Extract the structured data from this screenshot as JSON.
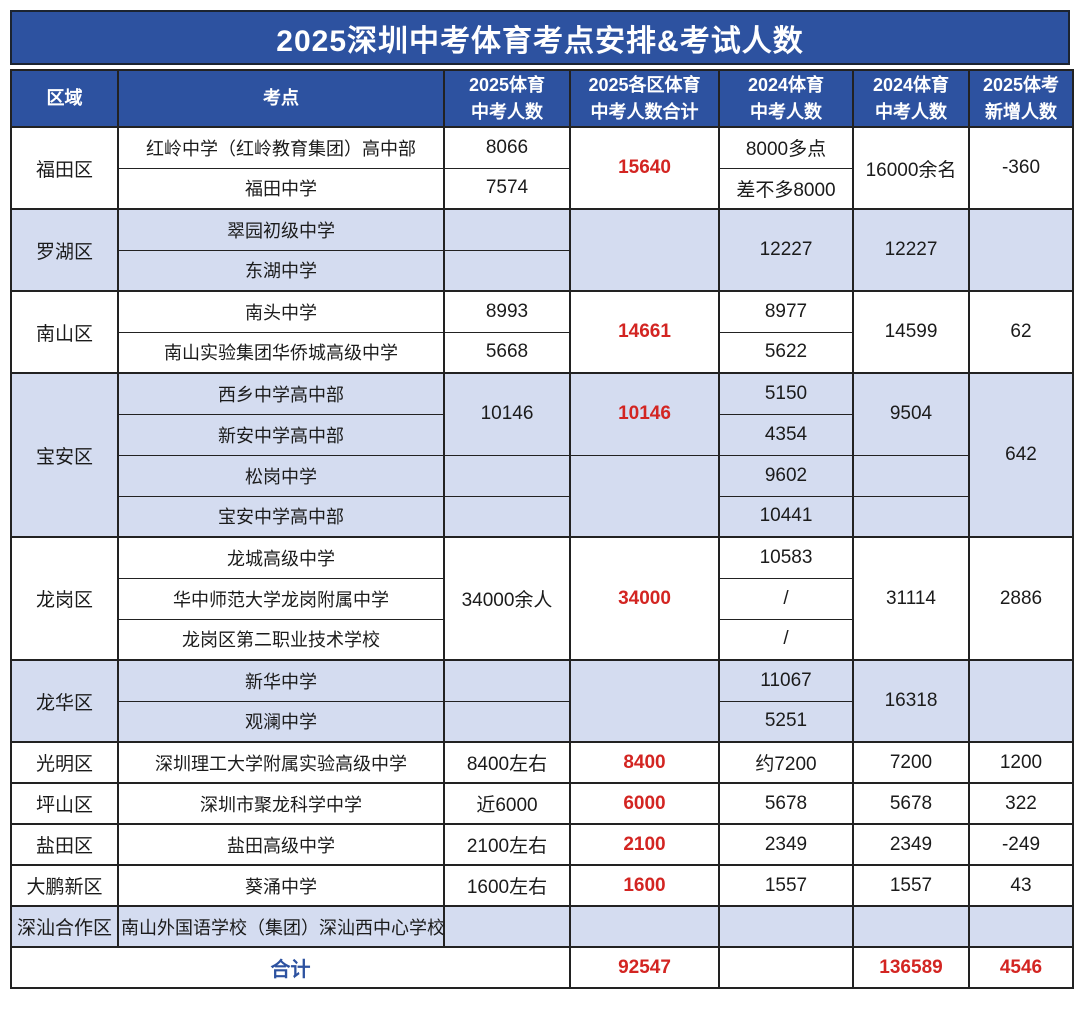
{
  "title": "2025深圳中考体育考点安排&考试人数",
  "colors": {
    "header_blue": "#2d52a0",
    "row_light_blue": "#d4dcf0",
    "highlight_red": "#d32522",
    "total_label_blue": "#2d52a0",
    "border": "#222222"
  },
  "table": {
    "columns": [
      {
        "line1": "区域",
        "line2": ""
      },
      {
        "line1": "考点",
        "line2": ""
      },
      {
        "line1": "2025体育",
        "line2": "中考人数"
      },
      {
        "line1": "2025各区体育",
        "line2": "中考人数合计"
      },
      {
        "line1": "2024体育",
        "line2": "中考人数"
      },
      {
        "line1": "2024体育",
        "line2": "中考人数"
      },
      {
        "line1": "2025体考",
        "line2": "新增人数"
      }
    ],
    "rows": [
      {
        "g": true,
        "shade": "w",
        "cells": [
          {
            "t": "福田区",
            "rs": 2,
            "nm": "cell-district"
          },
          {
            "t": "红岭中学（红岭教育集团）高中部",
            "nm": "cell-school"
          },
          {
            "t": "8066",
            "nm": "cell-value"
          },
          {
            "t": "15640",
            "rs": 2,
            "cls": "red",
            "nm": "cell-value"
          },
          {
            "t": "8000多点",
            "nm": "cell-value"
          },
          {
            "t": "16000余名",
            "rs": 2,
            "nm": "cell-value"
          },
          {
            "t": "-360",
            "rs": 2,
            "nm": "cell-value"
          }
        ]
      },
      {
        "shade": "w",
        "cells": [
          {
            "t": "福田中学",
            "nm": "cell-school"
          },
          {
            "t": "7574",
            "nm": "cell-value"
          },
          {
            "t": "差不多8000",
            "nm": "cell-value"
          }
        ]
      },
      {
        "g": true,
        "shade": "b",
        "cells": [
          {
            "t": "罗湖区",
            "rs": 2,
            "nm": "cell-district"
          },
          {
            "t": "翠园初级中学",
            "nm": "cell-school"
          },
          {
            "t": "",
            "nm": "cell-value"
          },
          {
            "t": "",
            "rs": 2,
            "nm": "cell-value"
          },
          {
            "t": "12227",
            "rs": 2,
            "nm": "cell-value"
          },
          {
            "t": "12227",
            "rs": 2,
            "nm": "cell-value"
          },
          {
            "t": "",
            "rs": 2,
            "nm": "cell-value"
          }
        ]
      },
      {
        "shade": "b",
        "cells": [
          {
            "t": "东湖中学",
            "nm": "cell-school"
          },
          {
            "t": "",
            "nm": "cell-value"
          }
        ]
      },
      {
        "g": true,
        "shade": "w",
        "cells": [
          {
            "t": "南山区",
            "rs": 2,
            "nm": "cell-district"
          },
          {
            "t": "南头中学",
            "nm": "cell-school"
          },
          {
            "t": "8993",
            "nm": "cell-value"
          },
          {
            "t": "14661",
            "rs": 2,
            "cls": "red",
            "nm": "cell-value"
          },
          {
            "t": "8977",
            "nm": "cell-value"
          },
          {
            "t": "14599",
            "rs": 2,
            "nm": "cell-value"
          },
          {
            "t": "62",
            "rs": 2,
            "nm": "cell-value"
          }
        ]
      },
      {
        "shade": "w",
        "cells": [
          {
            "t": "南山实验集团华侨城高级中学",
            "nm": "cell-school"
          },
          {
            "t": "5668",
            "nm": "cell-value"
          },
          {
            "t": "5622",
            "nm": "cell-value"
          }
        ]
      },
      {
        "g": true,
        "shade": "b",
        "cells": [
          {
            "t": "宝安区",
            "rs": 4,
            "nm": "cell-district"
          },
          {
            "t": "西乡中学高中部",
            "nm": "cell-school"
          },
          {
            "t": "10146",
            "rs": 2,
            "nm": "cell-value"
          },
          {
            "t": "10146",
            "rs": 2,
            "cls": "red",
            "nm": "cell-value"
          },
          {
            "t": "5150",
            "nm": "cell-value"
          },
          {
            "t": "9504",
            "rs": 2,
            "nm": "cell-value"
          },
          {
            "t": "642",
            "rs": 4,
            "nm": "cell-value"
          }
        ]
      },
      {
        "shade": "b",
        "cells": [
          {
            "t": "新安中学高中部",
            "nm": "cell-school"
          },
          {
            "t": "4354",
            "nm": "cell-value"
          }
        ]
      },
      {
        "shade": "b",
        "cells": [
          {
            "t": "松岗中学",
            "nm": "cell-school"
          },
          {
            "t": "",
            "nm": "cell-value"
          },
          {
            "t": "",
            "rs": 2,
            "nm": "cell-value"
          },
          {
            "t": "9602",
            "nm": "cell-value"
          },
          {
            "t": "",
            "nm": "cell-value"
          }
        ]
      },
      {
        "shade": "b",
        "cells": [
          {
            "t": "宝安中学高中部",
            "nm": "cell-school"
          },
          {
            "t": "",
            "nm": "cell-value"
          },
          {
            "t": "10441",
            "nm": "cell-value"
          },
          {
            "t": "",
            "nm": "cell-value"
          }
        ]
      },
      {
        "g": true,
        "shade": "w",
        "cells": [
          {
            "t": "龙岗区",
            "rs": 3,
            "nm": "cell-district"
          },
          {
            "t": "龙城高级中学",
            "nm": "cell-school"
          },
          {
            "t": "34000余人",
            "rs": 3,
            "nm": "cell-value"
          },
          {
            "t": "34000",
            "rs": 3,
            "cls": "red",
            "nm": "cell-value"
          },
          {
            "t": "10583",
            "nm": "cell-value"
          },
          {
            "t": "31114",
            "rs": 3,
            "nm": "cell-value"
          },
          {
            "t": "2886",
            "rs": 3,
            "nm": "cell-value"
          }
        ]
      },
      {
        "shade": "w",
        "cells": [
          {
            "t": "华中师范大学龙岗附属中学",
            "nm": "cell-school"
          },
          {
            "t": "/",
            "nm": "cell-value"
          }
        ]
      },
      {
        "shade": "w",
        "cells": [
          {
            "t": "龙岗区第二职业技术学校",
            "nm": "cell-school"
          },
          {
            "t": "/",
            "nm": "cell-value"
          }
        ]
      },
      {
        "g": true,
        "shade": "b",
        "cells": [
          {
            "t": "龙华区",
            "rs": 2,
            "nm": "cell-district"
          },
          {
            "t": "新华中学",
            "nm": "cell-school"
          },
          {
            "t": "",
            "nm": "cell-value"
          },
          {
            "t": "",
            "rs": 2,
            "nm": "cell-value"
          },
          {
            "t": "11067",
            "nm": "cell-value"
          },
          {
            "t": "16318",
            "rs": 2,
            "nm": "cell-value"
          },
          {
            "t": "",
            "rs": 2,
            "nm": "cell-value"
          }
        ]
      },
      {
        "shade": "b",
        "cells": [
          {
            "t": "观澜中学",
            "nm": "cell-school"
          },
          {
            "t": "",
            "nm": "cell-value"
          },
          {
            "t": "5251",
            "nm": "cell-value"
          }
        ]
      },
      {
        "g": true,
        "shade": "w",
        "cells": [
          {
            "t": "光明区",
            "nm": "cell-district"
          },
          {
            "t": "深圳理工大学附属实验高级中学",
            "nm": "cell-school"
          },
          {
            "t": "8400左右",
            "nm": "cell-value"
          },
          {
            "t": "8400",
            "cls": "red",
            "nm": "cell-value"
          },
          {
            "t": "约7200",
            "nm": "cell-value"
          },
          {
            "t": "7200",
            "nm": "cell-value"
          },
          {
            "t": "1200",
            "nm": "cell-value"
          }
        ]
      },
      {
        "g": true,
        "shade": "w",
        "cells": [
          {
            "t": "坪山区",
            "nm": "cell-district"
          },
          {
            "t": "深圳市聚龙科学中学",
            "nm": "cell-school"
          },
          {
            "t": "近6000",
            "nm": "cell-value"
          },
          {
            "t": "6000",
            "cls": "red",
            "nm": "cell-value"
          },
          {
            "t": "5678",
            "nm": "cell-value"
          },
          {
            "t": "5678",
            "nm": "cell-value"
          },
          {
            "t": "322",
            "nm": "cell-value"
          }
        ]
      },
      {
        "g": true,
        "shade": "w",
        "cells": [
          {
            "t": "盐田区",
            "nm": "cell-district"
          },
          {
            "t": "盐田高级中学",
            "nm": "cell-school"
          },
          {
            "t": "2100左右",
            "nm": "cell-value"
          },
          {
            "t": "2100",
            "cls": "red",
            "nm": "cell-value"
          },
          {
            "t": "2349",
            "nm": "cell-value"
          },
          {
            "t": "2349",
            "nm": "cell-value"
          },
          {
            "t": "-249",
            "nm": "cell-value"
          }
        ]
      },
      {
        "g": true,
        "shade": "w",
        "cells": [
          {
            "t": "大鹏新区",
            "nm": "cell-district"
          },
          {
            "t": "葵涌中学",
            "nm": "cell-school"
          },
          {
            "t": "1600左右",
            "nm": "cell-value"
          },
          {
            "t": "1600",
            "cls": "red",
            "nm": "cell-value"
          },
          {
            "t": "1557",
            "nm": "cell-value"
          },
          {
            "t": "1557",
            "nm": "cell-value"
          },
          {
            "t": "43",
            "nm": "cell-value"
          }
        ]
      },
      {
        "g": true,
        "shade": "b",
        "cells": [
          {
            "t": "深汕合作区",
            "nm": "cell-district"
          },
          {
            "t": "南山外国语学校（集团）深汕西中心学校",
            "nm": "cell-school"
          },
          {
            "t": "",
            "nm": "cell-value"
          },
          {
            "t": "",
            "nm": "cell-value"
          },
          {
            "t": "",
            "nm": "cell-value"
          },
          {
            "t": "",
            "nm": "cell-value"
          },
          {
            "t": "",
            "nm": "cell-value"
          }
        ]
      },
      {
        "g": true,
        "shade": "w",
        "cells": [
          {
            "t": "合计",
            "cs": 3,
            "cls": "blue",
            "nm": "cell-total-label"
          },
          {
            "t": "92547",
            "cls": "red",
            "nm": "cell-value"
          },
          {
            "t": "",
            "nm": "cell-value"
          },
          {
            "t": "136589",
            "cls": "red",
            "nm": "cell-value"
          },
          {
            "t": "4546",
            "cls": "red",
            "nm": "cell-value"
          }
        ]
      }
    ]
  }
}
